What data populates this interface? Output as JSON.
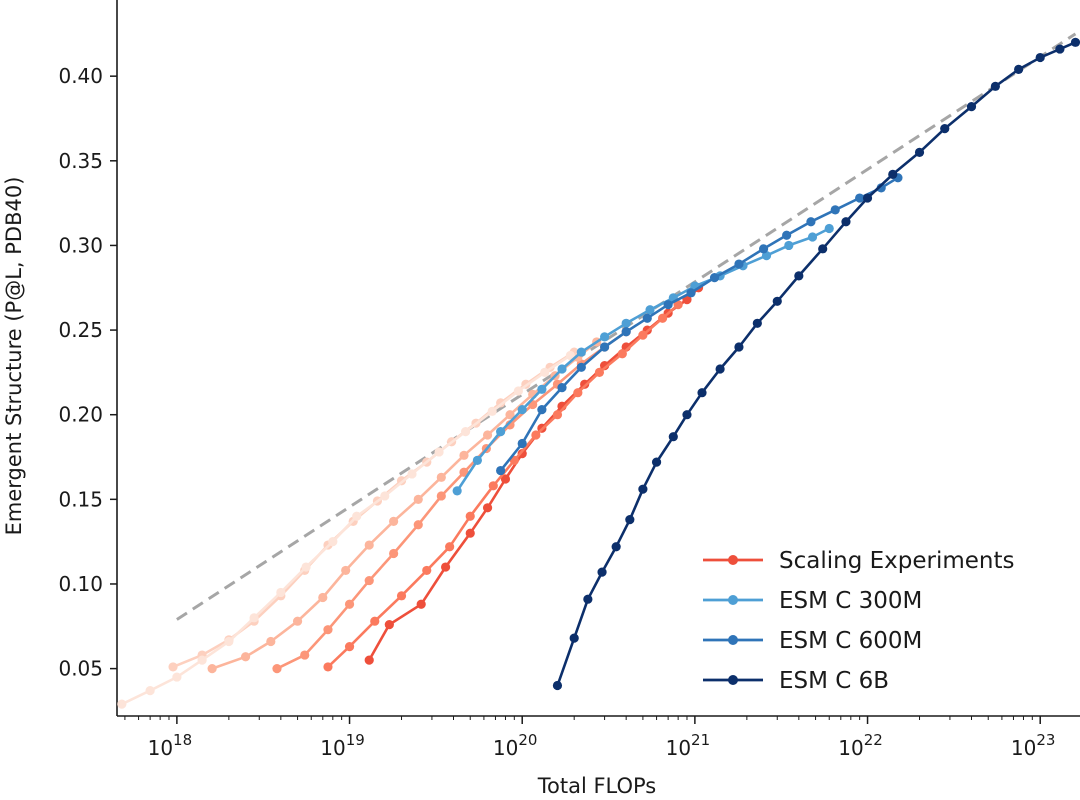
{
  "chart_data": {
    "type": "line",
    "xlabel": "Total FLOPs",
    "ylabel": "Emergent Structure (P@L, PDB40)",
    "xscale": "log",
    "xlim": [
      4.5e+17,
      1.7e+23
    ],
    "ylim": [
      0.022,
      0.445
    ],
    "y_ticks": [
      "0.05",
      "0.10",
      "0.15",
      "0.20",
      "0.25",
      "0.30",
      "0.35",
      "0.40"
    ],
    "x_ticks": [
      {
        "base": "10",
        "exp": "18"
      },
      {
        "base": "10",
        "exp": "19"
      },
      {
        "base": "10",
        "exp": "20"
      },
      {
        "base": "10",
        "exp": "21"
      },
      {
        "base": "10",
        "exp": "22"
      },
      {
        "base": "10",
        "exp": "23"
      }
    ],
    "legend_position": "lower-right",
    "grid": false,
    "reference_line": {
      "style": "dashed",
      "color": "#a6a6a6",
      "points": [
        [
          1e+18,
          0.079
        ],
        [
          1.6e+23,
          0.425
        ]
      ]
    },
    "series": [
      {
        "name": "Scaling Experiments",
        "color": "#ee4f3b",
        "legend": true,
        "points": [
          [
            1.3e+19,
            0.055
          ],
          [
            1.7e+19,
            0.076
          ],
          [
            2.6e+19,
            0.088
          ],
          [
            3.6e+19,
            0.11
          ],
          [
            5e+19,
            0.13
          ],
          [
            6.3e+19,
            0.145
          ],
          [
            8e+19,
            0.162
          ],
          [
            1e+20,
            0.177
          ],
          [
            1.3e+20,
            0.192
          ],
          [
            1.7e+20,
            0.205
          ],
          [
            2.3e+20,
            0.218
          ],
          [
            3e+20,
            0.229
          ],
          [
            4e+20,
            0.24
          ],
          [
            5.3e+20,
            0.25
          ],
          [
            7e+20,
            0.26
          ],
          [
            9e+20,
            0.268
          ],
          [
            1.05e+21,
            0.275
          ]
        ]
      },
      {
        "name": "",
        "color": "#fb7a5e",
        "legend": false,
        "points": [
          [
            7.5e+18,
            0.051
          ],
          [
            1e+19,
            0.063
          ],
          [
            1.4e+19,
            0.078
          ],
          [
            2e+19,
            0.093
          ],
          [
            2.8e+19,
            0.108
          ],
          [
            3.8e+19,
            0.122
          ],
          [
            5e+19,
            0.14
          ],
          [
            6.8e+19,
            0.158
          ],
          [
            9e+19,
            0.173
          ],
          [
            1.2e+20,
            0.188
          ],
          [
            1.6e+20,
            0.2
          ],
          [
            2.1e+20,
            0.213
          ],
          [
            2.8e+20,
            0.225
          ],
          [
            3.8e+20,
            0.236
          ],
          [
            5e+20,
            0.247
          ],
          [
            6.5e+20,
            0.257
          ],
          [
            8e+20,
            0.265
          ]
        ]
      },
      {
        "name": "",
        "color": "#fc9679",
        "legend": false,
        "points": [
          [
            3.8e+18,
            0.05
          ],
          [
            5.5e+18,
            0.058
          ],
          [
            7.5e+18,
            0.073
          ],
          [
            1e+19,
            0.088
          ],
          [
            1.3e+19,
            0.102
          ],
          [
            1.8e+19,
            0.118
          ],
          [
            2.5e+19,
            0.135
          ],
          [
            3.4e+19,
            0.152
          ],
          [
            4.6e+19,
            0.166
          ],
          [
            6.2e+19,
            0.18
          ],
          [
            8.5e+19,
            0.194
          ],
          [
            1.15e+20,
            0.206
          ],
          [
            1.6e+20,
            0.218
          ],
          [
            2.2e+20,
            0.23
          ],
          [
            3e+20,
            0.24
          ],
          [
            4e+20,
            0.249
          ]
        ]
      },
      {
        "name": "",
        "color": "#fcb59c",
        "legend": false,
        "points": [
          [
            1.6e+18,
            0.05
          ],
          [
            2.5e+18,
            0.057
          ],
          [
            3.5e+18,
            0.066
          ],
          [
            5e+18,
            0.078
          ],
          [
            7e+18,
            0.092
          ],
          [
            9.5e+18,
            0.108
          ],
          [
            1.3e+19,
            0.123
          ],
          [
            1.8e+19,
            0.137
          ],
          [
            2.5e+19,
            0.15
          ],
          [
            3.4e+19,
            0.163
          ],
          [
            4.6e+19,
            0.176
          ],
          [
            6.3e+19,
            0.188
          ],
          [
            8.5e+19,
            0.2
          ],
          [
            1.15e+20,
            0.212
          ],
          [
            1.55e+20,
            0.223
          ],
          [
            2.1e+20,
            0.234
          ],
          [
            2.7e+20,
            0.243
          ]
        ]
      },
      {
        "name": "",
        "color": "#fdd0bf",
        "legend": false,
        "points": [
          [
            9.5e+17,
            0.051
          ],
          [
            1.4e+18,
            0.058
          ],
          [
            2e+18,
            0.067
          ],
          [
            2.8e+18,
            0.078
          ],
          [
            4e+18,
            0.093
          ],
          [
            5.5e+18,
            0.108
          ],
          [
            7.5e+18,
            0.123
          ],
          [
            1.05e+19,
            0.137
          ],
          [
            1.45e+19,
            0.149
          ],
          [
            2e+19,
            0.161
          ],
          [
            2.8e+19,
            0.172
          ],
          [
            3.9e+19,
            0.184
          ],
          [
            5.4e+19,
            0.195
          ],
          [
            7.5e+19,
            0.207
          ],
          [
            1.05e+20,
            0.218
          ],
          [
            1.45e+20,
            0.228
          ],
          [
            2e+20,
            0.237
          ]
        ]
      },
      {
        "name": "",
        "color": "#fde4d9",
        "legend": false,
        "points": [
          [
            4.8e+17,
            0.029
          ],
          [
            7e+17,
            0.037
          ],
          [
            1e+18,
            0.045
          ],
          [
            1.4e+18,
            0.055
          ],
          [
            2e+18,
            0.066
          ],
          [
            2.8e+18,
            0.08
          ],
          [
            4e+18,
            0.095
          ],
          [
            5.6e+18,
            0.11
          ],
          [
            8e+18,
            0.125
          ],
          [
            1.1e+19,
            0.14
          ],
          [
            1.6e+19,
            0.152
          ],
          [
            2.3e+19,
            0.165
          ],
          [
            3.3e+19,
            0.178
          ],
          [
            4.7e+19,
            0.19
          ],
          [
            6.7e+19,
            0.202
          ],
          [
            9.5e+19,
            0.214
          ],
          [
            1.35e+20,
            0.225
          ],
          [
            1.9e+20,
            0.235
          ]
        ]
      },
      {
        "name": "ESM C 300M",
        "color": "#4e9fd5",
        "legend": true,
        "points": [
          [
            4.2e+19,
            0.155
          ],
          [
            5.5e+19,
            0.173
          ],
          [
            7.5e+19,
            0.19
          ],
          [
            1e+20,
            0.203
          ],
          [
            1.3e+20,
            0.215
          ],
          [
            1.7e+20,
            0.227
          ],
          [
            2.2e+20,
            0.237
          ],
          [
            3e+20,
            0.246
          ],
          [
            4e+20,
            0.254
          ],
          [
            5.5e+20,
            0.262
          ],
          [
            7.5e+20,
            0.269
          ],
          [
            1e+21,
            0.276
          ],
          [
            1.4e+21,
            0.282
          ],
          [
            1.9e+21,
            0.288
          ],
          [
            2.6e+21,
            0.294
          ],
          [
            3.5e+21,
            0.3
          ],
          [
            4.8e+21,
            0.305
          ],
          [
            6e+21,
            0.31
          ]
        ]
      },
      {
        "name": "ESM C 600M",
        "color": "#2f74b8",
        "legend": true,
        "points": [
          [
            7.5e+19,
            0.167
          ],
          [
            1e+20,
            0.183
          ],
          [
            1.3e+20,
            0.203
          ],
          [
            1.7e+20,
            0.216
          ],
          [
            2.2e+20,
            0.228
          ],
          [
            3e+20,
            0.24
          ],
          [
            4e+20,
            0.249
          ],
          [
            5.3e+20,
            0.257
          ],
          [
            7e+20,
            0.265
          ],
          [
            9.5e+20,
            0.272
          ],
          [
            1.3e+21,
            0.281
          ],
          [
            1.8e+21,
            0.289
          ],
          [
            2.5e+21,
            0.298
          ],
          [
            3.4e+21,
            0.306
          ],
          [
            4.7e+21,
            0.314
          ],
          [
            6.5e+21,
            0.321
          ],
          [
            9e+21,
            0.328
          ],
          [
            1.2e+22,
            0.334
          ],
          [
            1.5e+22,
            0.34
          ]
        ]
      },
      {
        "name": "ESM C 6B",
        "color": "#0c2f6b",
        "legend": true,
        "points": [
          [
            1.6e+20,
            0.04
          ],
          [
            2e+20,
            0.068
          ],
          [
            2.4e+20,
            0.091
          ],
          [
            2.9e+20,
            0.107
          ],
          [
            3.5e+20,
            0.122
          ],
          [
            4.2e+20,
            0.138
          ],
          [
            5e+20,
            0.156
          ],
          [
            6e+20,
            0.172
          ],
          [
            7.5e+20,
            0.187
          ],
          [
            9e+20,
            0.2
          ],
          [
            1.1e+21,
            0.213
          ],
          [
            1.4e+21,
            0.227
          ],
          [
            1.8e+21,
            0.24
          ],
          [
            2.3e+21,
            0.254
          ],
          [
            3e+21,
            0.267
          ],
          [
            4e+21,
            0.282
          ],
          [
            5.5e+21,
            0.298
          ],
          [
            7.5e+21,
            0.314
          ],
          [
            1e+22,
            0.328
          ],
          [
            1.4e+22,
            0.342
          ],
          [
            2e+22,
            0.355
          ],
          [
            2.8e+22,
            0.369
          ],
          [
            4e+22,
            0.382
          ],
          [
            5.5e+22,
            0.394
          ],
          [
            7.5e+22,
            0.404
          ],
          [
            1e+23,
            0.411
          ],
          [
            1.3e+23,
            0.416
          ],
          [
            1.6e+23,
            0.42
          ]
        ]
      }
    ]
  }
}
